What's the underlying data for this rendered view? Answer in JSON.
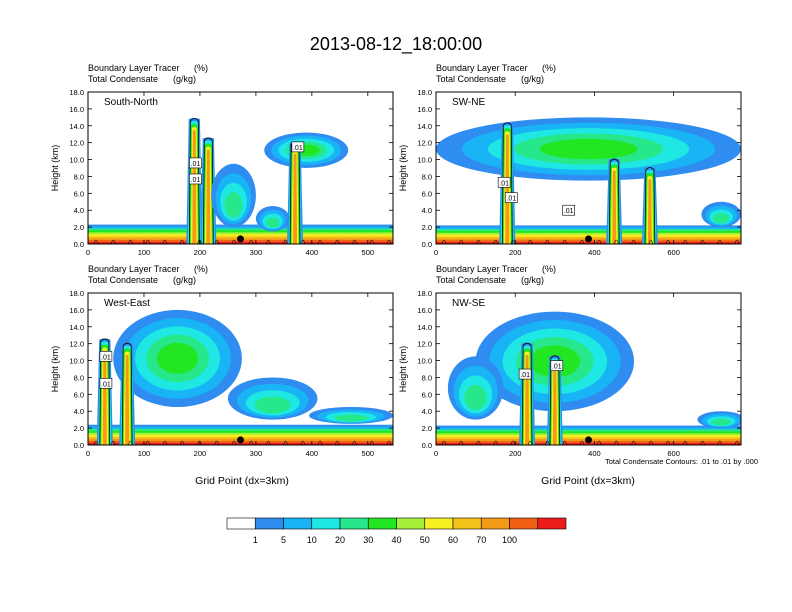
{
  "figure": {
    "title": "2013-08-12_18:00:00",
    "xlabel": "Grid Point (dx=3km)",
    "ylabel": "Height (km)",
    "subtitle_line1": "Boundary Layer Tracer",
    "subtitle_unit1": "(%)",
    "subtitle_line2": "Total Condensate",
    "subtitle_unit2": "(g/kg)",
    "contour_info": "Total Condensate Contours: .01 to .01 by .000"
  },
  "colorbar": {
    "levels": [
      "1",
      "5",
      "10",
      "20",
      "30",
      "40",
      "50",
      "60",
      "70",
      "100"
    ],
    "colors": [
      "#ffffff",
      "#2f8cf0",
      "#18b4f6",
      "#1ee7e4",
      "#26e88a",
      "#22e622",
      "#a6f03a",
      "#f8f020",
      "#f5c21a",
      "#f59a16",
      "#f26016",
      "#ec1c1c"
    ]
  },
  "chart_data": [
    {
      "type": "contour",
      "panel_label": "South-North",
      "xlim": [
        0,
        545
      ],
      "ylim": [
        0,
        18
      ],
      "xticks": [
        "0",
        "100",
        "200",
        "300",
        "400",
        "500"
      ],
      "yticks": [
        "0.0",
        "2.0",
        "4.0",
        "6.0",
        "8.0",
        "10.0",
        "12.0",
        "14.0",
        "16.0",
        "18.0"
      ],
      "contour_labels": [
        {
          "text": ".01",
          "x": 375,
          "y": 11.5
        },
        {
          "text": ".01",
          "x": 192,
          "y": 9.6
        },
        {
          "text": ".01",
          "x": 192,
          "y": 7.7
        }
      ],
      "features": [
        {
          "kind": "surface",
          "top": 2.3
        },
        {
          "kind": "tower",
          "x": 190,
          "top": 14.8
        },
        {
          "kind": "tower",
          "x": 215,
          "top": 12.5
        },
        {
          "kind": "anvil",
          "x": 390,
          "top": 13.2,
          "bottom": 9.0,
          "width": 150
        },
        {
          "kind": "tower",
          "x": 370,
          "top": 12.0
        },
        {
          "kind": "plume",
          "x": 260,
          "top": 9.5,
          "bottom": 2.0,
          "width": 80
        },
        {
          "kind": "plume",
          "x": 330,
          "top": 4.5,
          "bottom": 1.5,
          "width": 60
        }
      ]
    },
    {
      "type": "contour",
      "panel_label": "SW-NE",
      "xlim": [
        0,
        770
      ],
      "ylim": [
        0,
        18
      ],
      "xticks": [
        "0",
        "200",
        "400",
        "600"
      ],
      "yticks": [
        "0.0",
        "2.0",
        "4.0",
        "6.0",
        "8.0",
        "10.0",
        "12.0",
        "14.0",
        "16.0",
        "18.0"
      ],
      "contour_labels": [
        {
          "text": ".01",
          "x": 172,
          "y": 7.3
        },
        {
          "text": ".01",
          "x": 190,
          "y": 5.5
        },
        {
          "text": ".01",
          "x": 335,
          "y": 4.0
        }
      ],
      "features": [
        {
          "kind": "surface",
          "top": 2.2
        },
        {
          "kind": "anvil",
          "x": 385,
          "top": 15.0,
          "bottom": 7.5,
          "width": 770
        },
        {
          "kind": "tower",
          "x": 180,
          "top": 14.3
        },
        {
          "kind": "tower",
          "x": 450,
          "top": 10.0
        },
        {
          "kind": "tower",
          "x": 540,
          "top": 9.0
        },
        {
          "kind": "plume",
          "x": 720,
          "top": 5.0,
          "bottom": 2.0,
          "width": 100
        }
      ]
    },
    {
      "type": "contour",
      "panel_label": "West-East",
      "xlim": [
        0,
        545
      ],
      "ylim": [
        0,
        18
      ],
      "xticks": [
        "0",
        "100",
        "200",
        "300",
        "400",
        "500"
      ],
      "yticks": [
        "0.0",
        "2.0",
        "4.0",
        "6.0",
        "8.0",
        "10.0",
        "12.0",
        "14.0",
        "16.0",
        "18.0"
      ],
      "contour_labels": [
        {
          "text": ".01",
          "x": 32,
          "y": 10.5
        },
        {
          "text": ".01",
          "x": 32,
          "y": 7.3
        }
      ],
      "features": [
        {
          "kind": "surface",
          "top": 2.4
        },
        {
          "kind": "anvil",
          "x": 160,
          "top": 16.0,
          "bottom": 4.5,
          "width": 230
        },
        {
          "kind": "tower",
          "x": 30,
          "top": 12.5
        },
        {
          "kind": "tower",
          "x": 70,
          "top": 12.0
        },
        {
          "kind": "plume",
          "x": 330,
          "top": 8.0,
          "bottom": 3.0,
          "width": 160
        },
        {
          "kind": "plume",
          "x": 470,
          "top": 4.5,
          "bottom": 2.5,
          "width": 150
        }
      ]
    },
    {
      "type": "contour",
      "panel_label": "NW-SE",
      "xlim": [
        0,
        770
      ],
      "ylim": [
        0,
        18
      ],
      "xticks": [
        "0",
        "200",
        "400",
        "600"
      ],
      "yticks": [
        "0.0",
        "2.0",
        "4.0",
        "6.0",
        "8.0",
        "10.0",
        "12.0",
        "14.0",
        "16.0",
        "18.0"
      ],
      "contour_labels": [
        {
          "text": ".01",
          "x": 225,
          "y": 8.4
        },
        {
          "text": ".01",
          "x": 305,
          "y": 9.4
        }
      ],
      "features": [
        {
          "kind": "surface",
          "top": 2.3
        },
        {
          "kind": "anvil",
          "x": 300,
          "top": 15.8,
          "bottom": 4.0,
          "width": 400
        },
        {
          "kind": "tower",
          "x": 300,
          "top": 10.5
        },
        {
          "kind": "tower",
          "x": 230,
          "top": 12.0
        },
        {
          "kind": "plume",
          "x": 100,
          "top": 10.5,
          "bottom": 3.0,
          "width": 140
        },
        {
          "kind": "plume",
          "x": 720,
          "top": 4.0,
          "bottom": 2.0,
          "width": 120
        }
      ]
    }
  ]
}
